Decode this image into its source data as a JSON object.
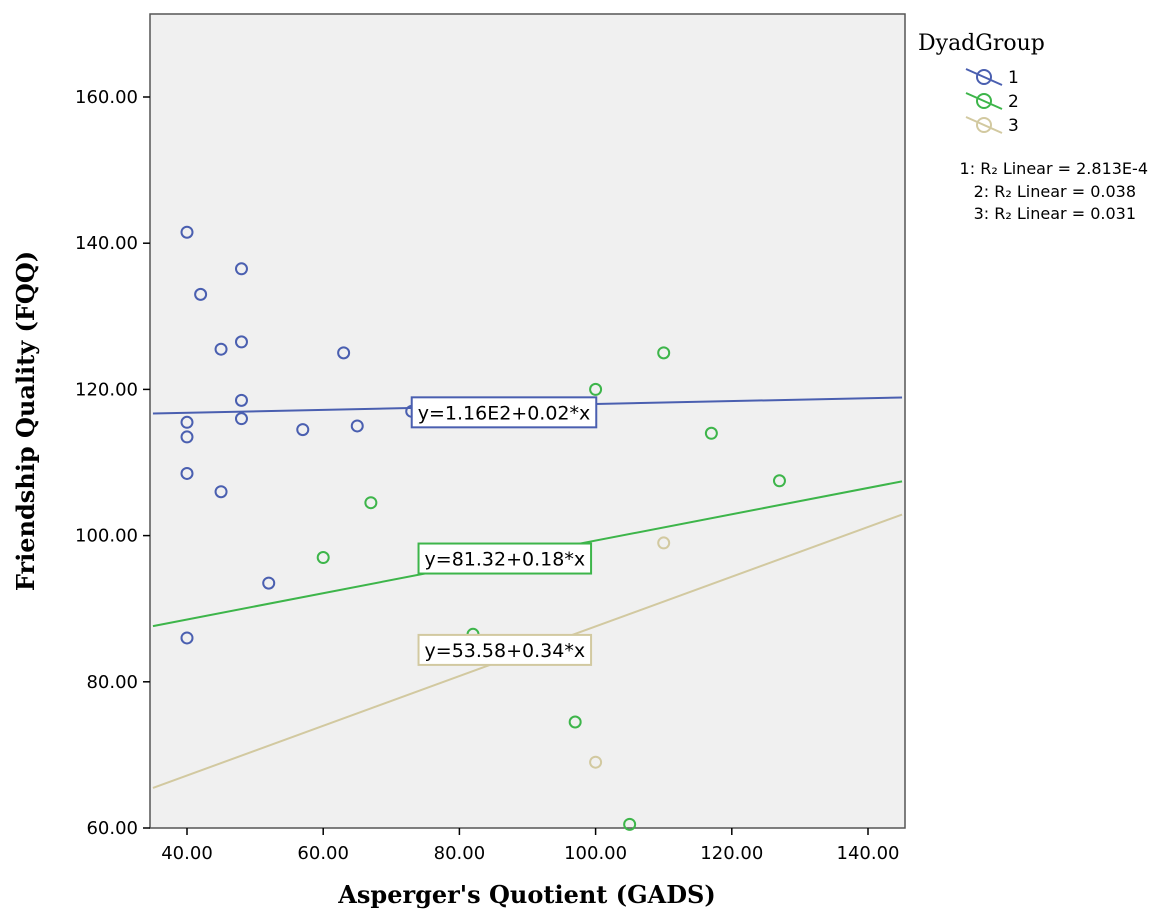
{
  "chart_data": {
    "type": "scatter",
    "xlabel": "Asperger's Quotient (GADS)",
    "ylabel": "Friendship Quality (FQQ)",
    "xlim": [
      35,
      145
    ],
    "ylim": [
      60,
      170
    ],
    "xticks": [
      40,
      60,
      80,
      100,
      120,
      140
    ],
    "yticks": [
      60,
      80,
      100,
      120,
      140,
      160
    ],
    "xtick_labels": [
      "40.00",
      "60.00",
      "80.00",
      "100.00",
      "120.00",
      "140.00"
    ],
    "ytick_labels": [
      "60.00",
      "80.00",
      "100.00",
      "120.00",
      "140.00",
      "160.00"
    ],
    "background": "#f0f0f0",
    "grid": false,
    "legend": {
      "title": "DyadGroup",
      "position": "right",
      "r_squared": [
        "1: R₂ Linear = 2.813E-4",
        "2: R₂ Linear = 0.038",
        "3: R₂ Linear = 0.031"
      ]
    },
    "series": [
      {
        "name": "1",
        "color": "#4a5fb0",
        "fit": {
          "intercept": 116,
          "slope": 0.02,
          "label": "y=1.16E2+0.02*x",
          "label_at": [
            73,
            117
          ]
        },
        "points": [
          [
            40,
            141.5
          ],
          [
            40,
            115.5
          ],
          [
            40,
            113.5
          ],
          [
            40,
            108.5
          ],
          [
            40,
            86
          ],
          [
            42,
            133
          ],
          [
            45,
            125.5
          ],
          [
            45,
            106
          ],
          [
            48,
            136.5
          ],
          [
            48,
            126.5
          ],
          [
            48,
            118.5
          ],
          [
            48,
            116
          ],
          [
            52,
            93.5
          ],
          [
            57,
            114.5
          ],
          [
            63,
            125
          ],
          [
            65,
            115
          ],
          [
            73,
            117
          ]
        ]
      },
      {
        "name": "2",
        "color": "#3db54a",
        "fit": {
          "intercept": 81.32,
          "slope": 0.18,
          "label": "y=81.32+0.18*x",
          "label_at": [
            74,
            97
          ]
        },
        "points": [
          [
            60,
            97
          ],
          [
            67,
            104.5
          ],
          [
            82,
            86.5
          ],
          [
            97,
            74.5
          ],
          [
            100,
            120
          ],
          [
            105,
            60.5
          ],
          [
            110,
            125
          ],
          [
            117,
            114
          ],
          [
            127,
            107.5
          ]
        ]
      },
      {
        "name": "3",
        "color": "#d2c9a0",
        "fit": {
          "intercept": 53.58,
          "slope": 0.34,
          "label": "y=53.58+0.34*x",
          "label_at": [
            74,
            84.5
          ]
        },
        "points": [
          [
            100,
            69
          ],
          [
            110,
            99
          ]
        ]
      }
    ]
  }
}
